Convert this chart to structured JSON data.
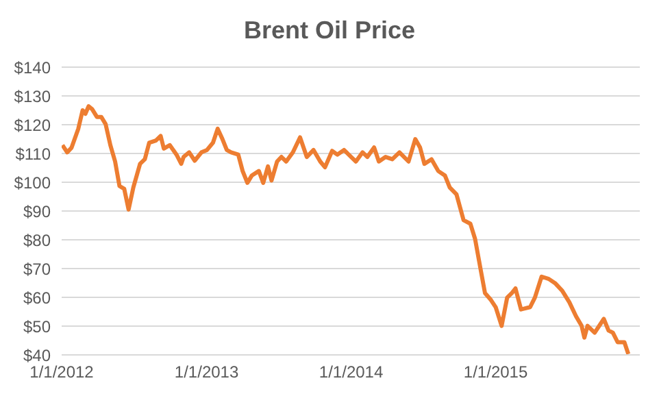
{
  "chart_data": {
    "type": "line",
    "title": "Brent Oil Price",
    "grid": "y",
    "legend": false,
    "marker": "none",
    "line_style": "solid",
    "xlim": [
      "2012-01-01",
      "2015-12-31"
    ],
    "xticks": [
      {
        "value": "2012-01-01",
        "label": "1/1/2012"
      },
      {
        "value": "2013-01-01",
        "label": "1/1/2013"
      },
      {
        "value": "2014-01-01",
        "label": "1/1/2014"
      },
      {
        "value": "2015-01-01",
        "label": "1/1/2015"
      }
    ],
    "ylim": [
      40,
      140
    ],
    "yticks": [
      {
        "value": 40,
        "label": "$40"
      },
      {
        "value": 50,
        "label": "$50"
      },
      {
        "value": 60,
        "label": "$60"
      },
      {
        "value": 70,
        "label": "$70"
      },
      {
        "value": 80,
        "label": "$80"
      },
      {
        "value": 90,
        "label": "$90"
      },
      {
        "value": 100,
        "label": "$100"
      },
      {
        "value": 110,
        "label": "$110"
      },
      {
        "value": 120,
        "label": "$120"
      },
      {
        "value": 130,
        "label": "$130"
      },
      {
        "value": 140,
        "label": "$140"
      }
    ],
    "x": [
      "2012-01-03",
      "2012-01-15",
      "2012-01-26",
      "2012-02-12",
      "2012-02-23",
      "2012-03-01",
      "2012-03-09",
      "2012-03-18",
      "2012-03-30",
      "2012-04-10",
      "2012-04-21",
      "2012-05-03",
      "2012-05-15",
      "2012-05-26",
      "2012-06-07",
      "2012-06-18",
      "2012-06-30",
      "2012-07-17",
      "2012-07-29",
      "2012-08-09",
      "2012-08-26",
      "2012-09-07",
      "2012-09-15",
      "2012-09-30",
      "2012-10-17",
      "2012-10-29",
      "2012-11-04",
      "2012-11-18",
      "2012-12-02",
      "2012-12-19",
      "2013-01-02",
      "2013-01-17",
      "2013-01-29",
      "2013-02-09",
      "2013-02-21",
      "2013-03-04",
      "2013-03-22",
      "2013-04-02",
      "2013-04-14",
      "2013-04-25",
      "2013-05-13",
      "2013-05-24",
      "2013-06-05",
      "2013-06-14",
      "2013-06-28",
      "2013-07-09",
      "2013-07-21",
      "2013-08-07",
      "2013-08-25",
      "2013-09-11",
      "2013-09-28",
      "2013-10-15",
      "2013-10-27",
      "2013-11-14",
      "2013-11-27",
      "2013-12-14",
      "2014-01-01",
      "2014-01-13",
      "2014-01-30",
      "2014-02-11",
      "2014-02-28",
      "2014-03-12",
      "2014-03-29",
      "2014-04-15",
      "2014-05-03",
      "2014-05-26",
      "2014-06-12",
      "2014-06-24",
      "2014-07-05",
      "2014-07-23",
      "2014-08-09",
      "2014-08-26",
      "2014-09-07",
      "2014-09-24",
      "2014-10-12",
      "2014-10-29",
      "2014-11-10",
      "2014-11-24",
      "2014-12-05",
      "2014-12-20",
      "2015-01-01",
      "2015-01-16",
      "2015-01-30",
      "2015-02-11",
      "2015-02-20",
      "2015-03-06",
      "2015-03-29",
      "2015-04-10",
      "2015-04-27",
      "2015-05-15",
      "2015-06-01",
      "2015-06-18",
      "2015-07-06",
      "2015-07-23",
      "2015-08-06",
      "2015-08-13",
      "2015-08-21",
      "2015-09-08",
      "2015-10-01",
      "2015-10-13",
      "2015-10-24",
      "2015-11-05",
      "2015-11-22",
      "2015-12-02"
    ],
    "series": [
      {
        "color": "#ed7d31",
        "values": [
          112.9,
          110.4,
          112,
          118.6,
          125,
          123.8,
          126.4,
          125.4,
          122.7,
          122.7,
          120.2,
          112.9,
          107.2,
          98.7,
          97.7,
          90.5,
          98.2,
          106.4,
          108,
          113.7,
          114.5,
          116.1,
          111.7,
          112.9,
          109.6,
          106.4,
          108.8,
          110.4,
          107.5,
          110.4,
          111.2,
          113.7,
          118.6,
          115.3,
          111.2,
          110.4,
          109.6,
          103.9,
          99.8,
          102.3,
          103.9,
          99.8,
          105.5,
          100.6,
          107.2,
          108.8,
          107.2,
          110.4,
          115.6,
          108.8,
          111.2,
          107.2,
          105.2,
          110.9,
          109.6,
          111.2,
          108.8,
          107.2,
          110.4,
          108.8,
          112.1,
          107.2,
          108.8,
          108,
          110.4,
          107.2,
          115,
          112.1,
          106.4,
          108,
          103.9,
          102.3,
          98.2,
          95.8,
          86.8,
          85.6,
          80.3,
          69.7,
          61.5,
          59.1,
          56.6,
          50.1,
          59.9,
          61.5,
          63.1,
          55.8,
          56.6,
          59.9,
          67.2,
          66.4,
          64.8,
          62.3,
          58.3,
          53.4,
          50.1,
          46,
          50.1,
          47.7,
          52.5,
          48.5,
          47.7,
          44.4,
          44.4,
          40.3
        ]
      }
    ]
  }
}
